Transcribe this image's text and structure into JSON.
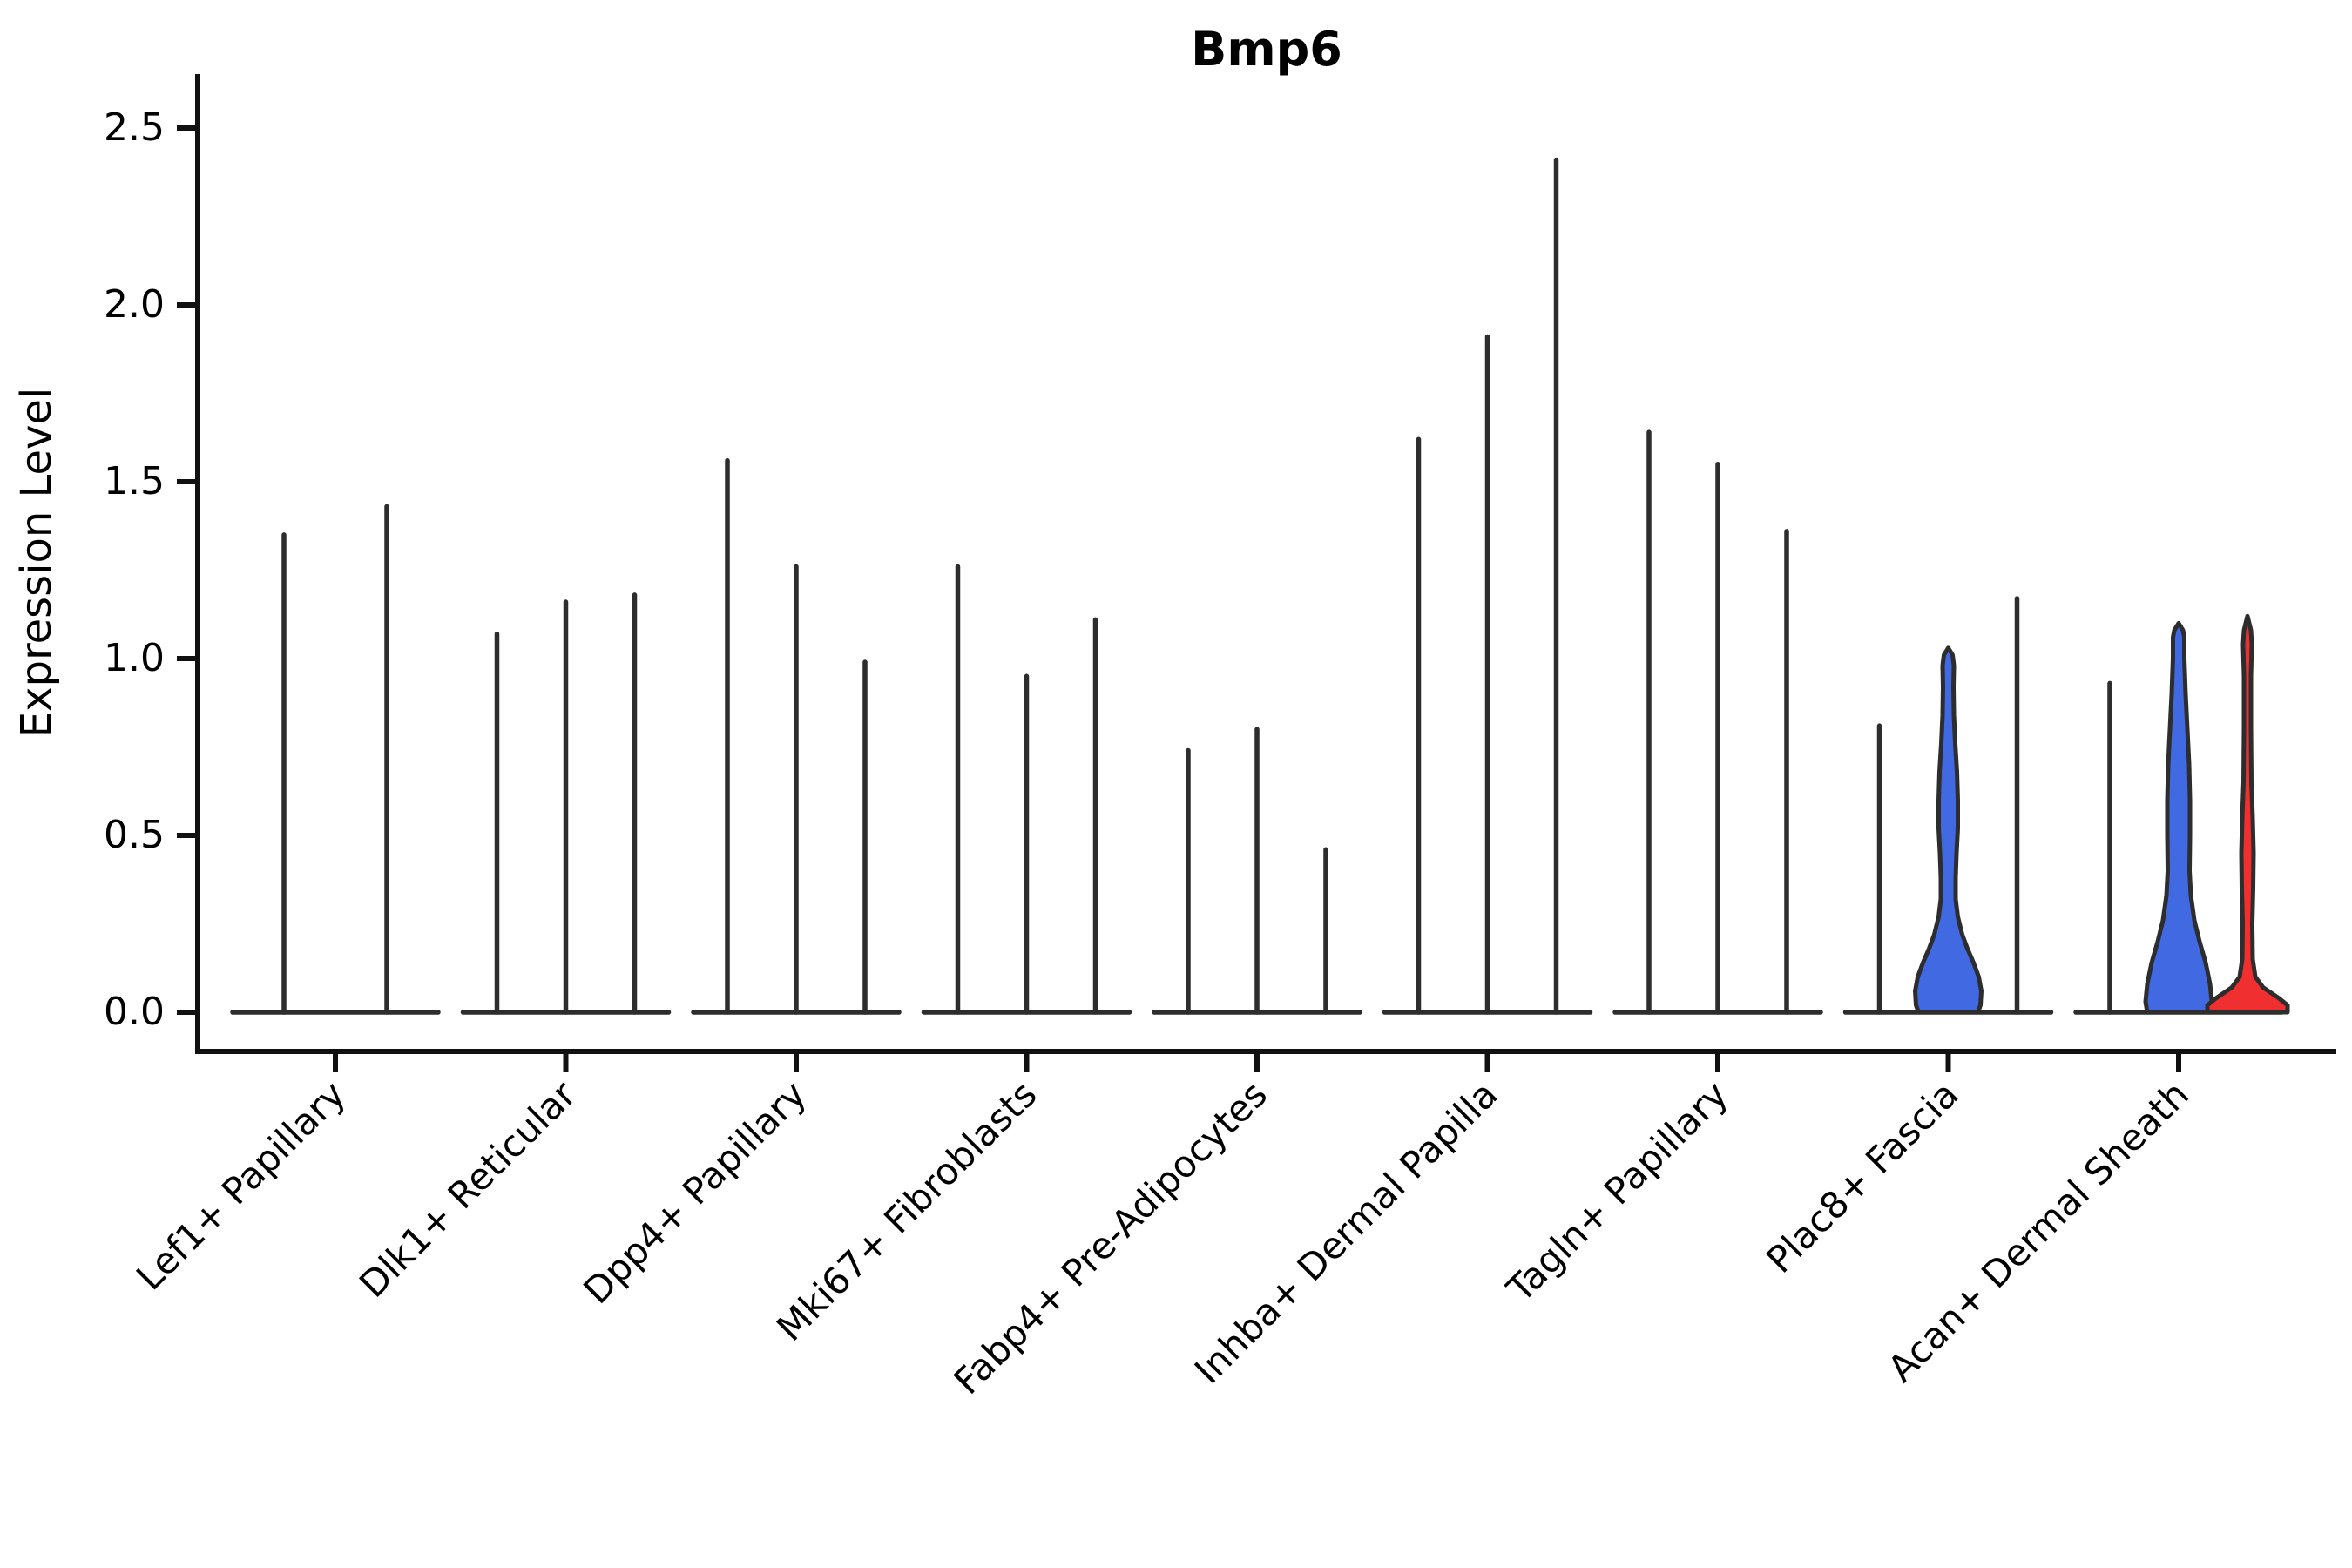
{
  "title": "Bmp6",
  "ylabel": "Expression Level",
  "chart_data": {
    "type": "violin",
    "title": "Bmp6",
    "xlabel": "",
    "ylabel": "Expression Level",
    "ylim": [
      0,
      2.5
    ],
    "yticks": [
      0.0,
      0.5,
      1.0,
      1.5,
      2.0,
      2.5
    ],
    "ytick_labels": [
      "0.0",
      "0.5",
      "1.0",
      "1.5",
      "2.0",
      "2.5"
    ],
    "grid": false,
    "legend": "none",
    "x_label_rotation_deg": 45,
    "colors": {
      "outline": "#2d2d2d",
      "spine": "#111111",
      "blue_fill": "#4169e1",
      "red_fill": "#f03030"
    },
    "description": "Violin plot of Bmp6 expression across 9 fibroblast cell-type clusters; each cluster holds 2-3 sample violins. Most violins collapse to a thin spike at 0 with a line up to the max expressed value; two violins are wide blue-filled, one is a low red-filled bump.",
    "categories": [
      {
        "label": "Lef1+ Papillary",
        "violins": [
          {
            "max": 1.35,
            "style": "thin"
          },
          {
            "max": 1.43,
            "style": "thin"
          }
        ]
      },
      {
        "label": "Dlk1+ Reticular",
        "violins": [
          {
            "max": 1.07,
            "style": "thin"
          },
          {
            "max": 1.16,
            "style": "thin"
          },
          {
            "max": 1.18,
            "style": "thin"
          }
        ]
      },
      {
        "label": "Dpp4+ Papillary",
        "violins": [
          {
            "max": 1.56,
            "style": "thin"
          },
          {
            "max": 1.26,
            "style": "thin"
          },
          {
            "max": 0.99,
            "style": "thin"
          }
        ]
      },
      {
        "label": "Mki67+ Fibroblasts",
        "violins": [
          {
            "max": 1.26,
            "style": "thin"
          },
          {
            "max": 0.95,
            "style": "thin"
          },
          {
            "max": 1.11,
            "style": "thin"
          }
        ]
      },
      {
        "label": "Fabp4+ Pre-Adipocytes",
        "violins": [
          {
            "max": 0.74,
            "style": "thin"
          },
          {
            "max": 0.8,
            "style": "thin"
          },
          {
            "max": 0.46,
            "style": "thin"
          }
        ]
      },
      {
        "label": "Inhba+ Dermal Papilla",
        "violins": [
          {
            "max": 1.62,
            "style": "thin"
          },
          {
            "max": 1.91,
            "style": "thin"
          },
          {
            "max": 2.41,
            "style": "thin"
          }
        ]
      },
      {
        "label": "Tagln+ Papillary",
        "violins": [
          {
            "max": 1.64,
            "style": "thin"
          },
          {
            "max": 1.55,
            "style": "thin"
          },
          {
            "max": 1.36,
            "style": "thin"
          }
        ]
      },
      {
        "label": "Plac8+ Fascia",
        "violins": [
          {
            "max": 0.81,
            "style": "thin"
          },
          {
            "max": 1.03,
            "style": "wide",
            "fill": "blue_fill",
            "profile": [
              [
                0,
                34
              ],
              [
                0.02,
                37
              ],
              [
                0.06,
                38
              ],
              [
                0.1,
                35
              ],
              [
                0.14,
                29
              ],
              [
                0.18,
                22
              ],
              [
                0.22,
                16
              ],
              [
                0.27,
                11
              ],
              [
                0.32,
                8.5
              ],
              [
                0.38,
                8.5
              ],
              [
                0.45,
                9.5
              ],
              [
                0.52,
                11
              ],
              [
                0.6,
                11
              ],
              [
                0.68,
                10
              ],
              [
                0.76,
                8
              ],
              [
                0.84,
                6.5
              ],
              [
                0.92,
                6
              ],
              [
                0.98,
                6.5
              ],
              [
                1.01,
                5
              ],
              [
                1.03,
                0
              ]
            ]
          },
          {
            "max": 1.17,
            "style": "thin"
          }
        ]
      },
      {
        "label": "Acan+ Dermal Sheath",
        "violins": [
          {
            "max": 0.93,
            "style": "thin"
          },
          {
            "max": 1.1,
            "style": "wide",
            "fill": "blue_fill",
            "profile": [
              [
                0,
                36
              ],
              [
                0.03,
                38
              ],
              [
                0.08,
                36
              ],
              [
                0.14,
                31
              ],
              [
                0.2,
                24
              ],
              [
                0.26,
                18
              ],
              [
                0.33,
                14
              ],
              [
                0.4,
                12.5
              ],
              [
                0.5,
                13
              ],
              [
                0.6,
                13
              ],
              [
                0.7,
                12
              ],
              [
                0.8,
                10
              ],
              [
                0.9,
                8
              ],
              [
                1.0,
                6.5
              ],
              [
                1.06,
                6.5
              ],
              [
                1.08,
                5
              ],
              [
                1.1,
                0
              ]
            ]
          },
          {
            "max": 1.12,
            "style": "wide",
            "fill": "red_fill",
            "profile": [
              [
                0,
                46
              ],
              [
                0.02,
                46
              ],
              [
                0.04,
                36
              ],
              [
                0.07,
                18
              ],
              [
                0.1,
                9
              ],
              [
                0.15,
                6
              ],
              [
                0.25,
                5.5
              ],
              [
                0.35,
                6.5
              ],
              [
                0.45,
                7
              ],
              [
                0.55,
                6
              ],
              [
                0.65,
                4.5
              ],
              [
                0.8,
                4
              ],
              [
                0.95,
                4
              ],
              [
                1.04,
                5
              ],
              [
                1.08,
                4
              ],
              [
                1.12,
                0
              ]
            ]
          }
        ]
      }
    ]
  }
}
